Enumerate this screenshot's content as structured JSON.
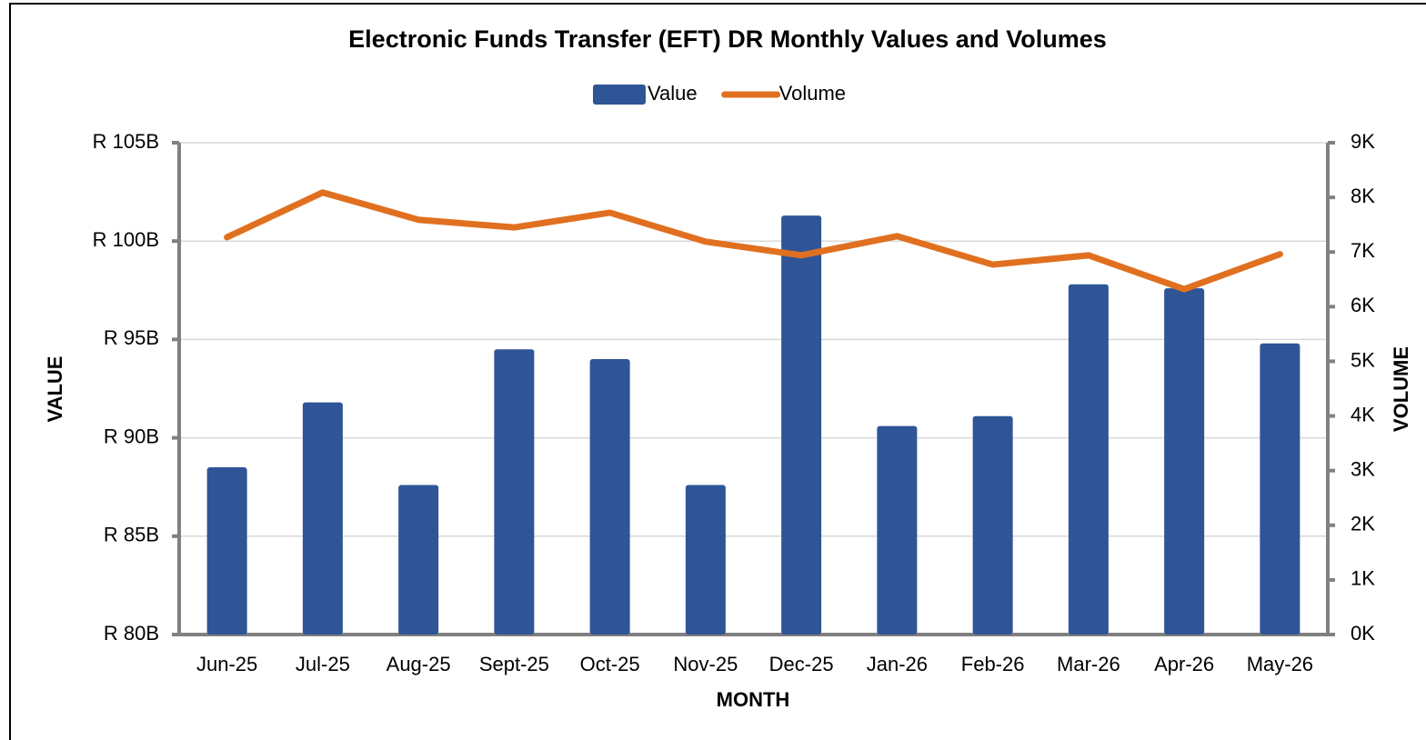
{
  "chart_data": {
    "type": "bar_line",
    "title": "Electronic Funds Transfer (EFT) DR Monthly Values and Volumes",
    "x_label": "MONTH",
    "y_label": "VALUE",
    "y2_label": "VOLUME",
    "categories": [
      "Jun-25",
      "Jul-25",
      "Aug-25",
      "Sept-25",
      "Oct-25",
      "Nov-25",
      "Dec-25",
      "Jan-26",
      "Feb-26",
      "Mar-26",
      "Apr-26",
      "May-26"
    ],
    "series": [
      {
        "name": "Value",
        "type": "bar",
        "color": "#2f5597",
        "values": [
          88.5,
          91.8,
          87.6,
          94.5,
          94.0,
          87.6,
          101.3,
          90.6,
          91.1,
          97.8,
          97.6,
          94.8
        ]
      },
      {
        "name": "Volume",
        "type": "line",
        "axis": "y2",
        "color": "#e07020",
        "values": [
          7.27,
          8.09,
          7.59,
          7.45,
          7.72,
          7.19,
          6.94,
          7.29,
          6.77,
          6.94,
          6.32,
          6.96
        ]
      }
    ],
    "ylim": [
      80,
      105
    ],
    "yticks": [
      {
        "value": 80,
        "label": "R 80B"
      },
      {
        "value": 85,
        "label": "R 85B"
      },
      {
        "value": 90,
        "label": "R 90B"
      },
      {
        "value": 95,
        "label": "R 95B"
      },
      {
        "value": 100,
        "label": "R 100B"
      },
      {
        "value": 105,
        "label": "R 105B"
      }
    ],
    "y2lim": [
      0,
      9
    ],
    "y2ticks": [
      {
        "value": 0,
        "label": "0K"
      },
      {
        "value": 1,
        "label": "1K"
      },
      {
        "value": 2,
        "label": "2K"
      },
      {
        "value": 3,
        "label": "3K"
      },
      {
        "value": 4,
        "label": "4K"
      },
      {
        "value": 5,
        "label": "5K"
      },
      {
        "value": 6,
        "label": "6K"
      },
      {
        "value": 7,
        "label": "7K"
      },
      {
        "value": 8,
        "label": "8K"
      },
      {
        "value": 9,
        "label": "9K"
      }
    ],
    "grid": true,
    "legend": "top"
  }
}
